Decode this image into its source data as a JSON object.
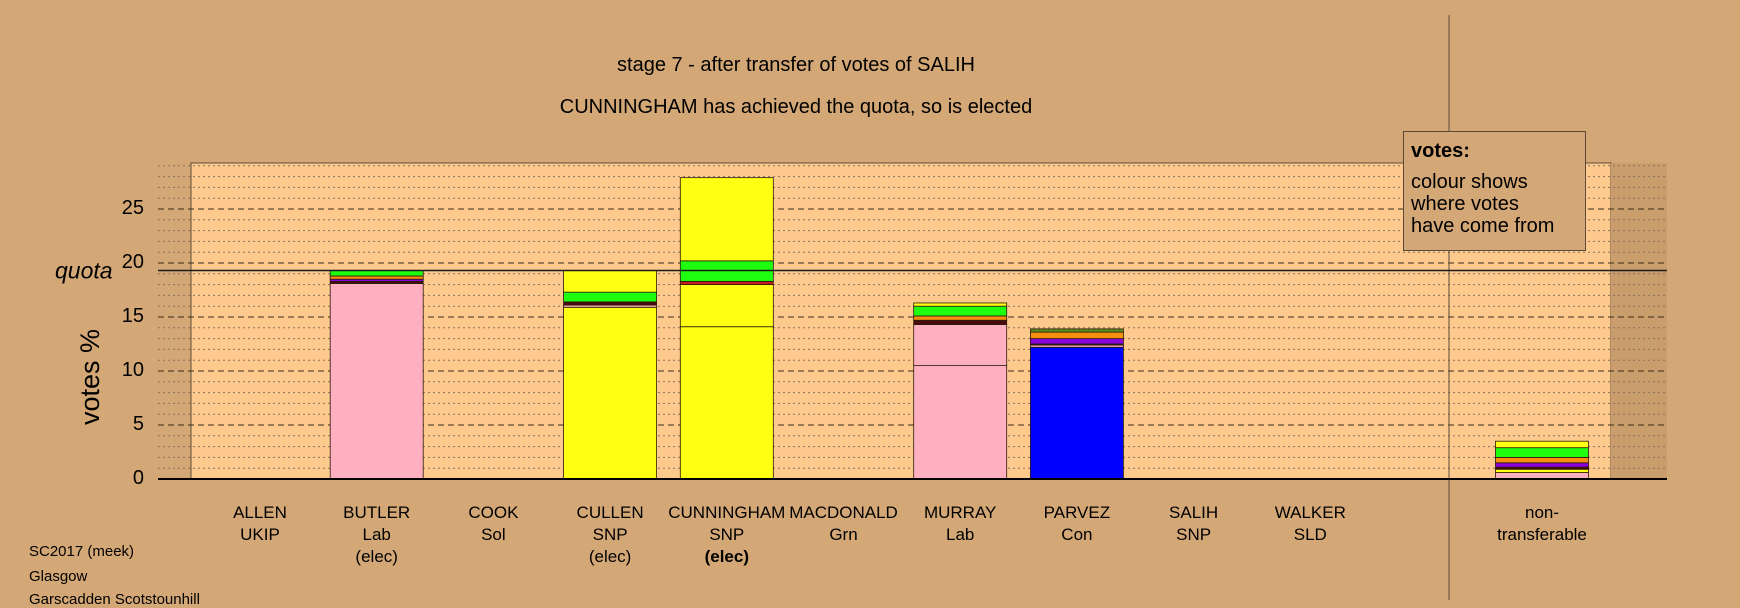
{
  "title": "stage 7 - after transfer of votes of SALIH",
  "subtitle": "CUNNINGHAM has achieved the quota, so is elected",
  "legend": {
    "heading": "votes:",
    "lines": [
      "colour shows",
      "where votes",
      "have come from"
    ]
  },
  "footer": [
    "SC2017 (meek)",
    "Glasgow",
    "Garscadden Scotstounhill"
  ],
  "colors": {
    "background": "#d4a876",
    "plot": "#fdc98c",
    "Lab": "#ffb0c0",
    "SNP": "#ffff14",
    "Con": "#0000ff",
    "Grn": "#1eff10",
    "orange": "#f5900e",
    "purple": "#8a00e0",
    "dark": "#4a0a0a",
    "olive": "#5a8a20"
  },
  "chart_data": {
    "type": "bar",
    "stacked": true,
    "title": "stage 7 - after transfer of votes of SALIH",
    "ylabel": "votes %",
    "ylim": [
      0,
      29
    ],
    "yticks": [
      "0",
      "5",
      "10",
      "15",
      "20",
      "25"
    ],
    "quota": 19.3,
    "quota_label": "quota",
    "categories": [
      {
        "name": "ALLEN",
        "party": "UKIP",
        "status": "",
        "segments": []
      },
      {
        "name": "BUTLER",
        "party": "Lab",
        "status": "(elec)",
        "segments": [
          {
            "color": "#ffb0c0",
            "value": 18.1
          },
          {
            "color": "#4a0a0a",
            "value": 0.2
          },
          {
            "color": "#8a00e0",
            "value": 0.2
          },
          {
            "color": "#f5900e",
            "value": 0.3
          },
          {
            "color": "#1eff10",
            "value": 0.5
          }
        ]
      },
      {
        "name": "COOK",
        "party": "Sol",
        "status": "",
        "segments": []
      },
      {
        "name": "CULLEN",
        "party": "SNP",
        "status": "(elec)",
        "segments": [
          {
            "color": "#ffff14",
            "value": 15.9
          },
          {
            "color": "#ffb0c0",
            "value": 0.2
          },
          {
            "color": "#4a0a0a",
            "value": 0.3
          },
          {
            "color": "#1eff10",
            "value": 0.9
          },
          {
            "color": "#ffff14",
            "value": 2.0
          }
        ]
      },
      {
        "name": "CUNNINGHAM",
        "party": "SNP",
        "status": "(elec)",
        "bold": true,
        "segments": [
          {
            "color": "#ffff14",
            "value": 14.1
          },
          {
            "color": "#ffff14",
            "value": 3.9
          },
          {
            "color": "#c02020",
            "value": 0.3
          },
          {
            "color": "#1eff10",
            "value": 1.9
          },
          {
            "color": "#ffff14",
            "value": 7.7
          }
        ]
      },
      {
        "name": "MACDONALD",
        "party": "Grn",
        "status": "",
        "segments": []
      },
      {
        "name": "MURRAY",
        "party": "Lab",
        "status": "",
        "segments": [
          {
            "color": "#ffb0c0",
            "value": 10.5
          },
          {
            "color": "#ffb0c0",
            "value": 3.8
          },
          {
            "color": "#4a0a0a",
            "value": 0.4
          },
          {
            "color": "#f5900e",
            "value": 0.4
          },
          {
            "color": "#1eff10",
            "value": 0.9
          },
          {
            "color": "#ffff14",
            "value": 0.3
          }
        ]
      },
      {
        "name": "PARVEZ",
        "party": "Con",
        "status": "",
        "segments": [
          {
            "color": "#0000ff",
            "value": 12.2
          },
          {
            "color": "#ffb0c0",
            "value": 0.2
          },
          {
            "color": "#4a0a0a",
            "value": 0.1
          },
          {
            "color": "#8a00e0",
            "value": 0.5
          },
          {
            "color": "#f5900e",
            "value": 0.6
          },
          {
            "color": "#5a8a20",
            "value": 0.3
          }
        ]
      },
      {
        "name": "SALIH",
        "party": "SNP",
        "status": "",
        "segments": []
      },
      {
        "name": "WALKER",
        "party": "SLD",
        "status": "",
        "segments": []
      },
      {
        "name": "non-",
        "party": "transferable",
        "status": "",
        "segments": [
          {
            "color": "#ffb0c0",
            "value": 0.6
          },
          {
            "color": "#ffff14",
            "value": 0.3
          },
          {
            "color": "#4a0a0a",
            "value": 0.2
          },
          {
            "color": "#8a00e0",
            "value": 0.4
          },
          {
            "color": "#f5900e",
            "value": 0.5
          },
          {
            "color": "#1eff10",
            "value": 0.9
          },
          {
            "color": "#ffff14",
            "value": 0.6
          }
        ]
      }
    ]
  }
}
